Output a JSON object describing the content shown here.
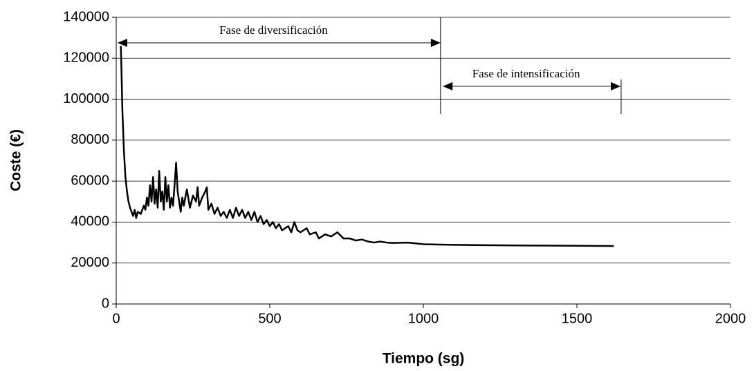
{
  "chart_data": {
    "type": "line",
    "xlabel": "Tiempo (sg)",
    "ylabel": "Coste (€)",
    "xlim": [
      0,
      2000
    ],
    "xticks": [
      0,
      500,
      1000,
      1500,
      2000
    ],
    "ylim": [
      0,
      140000
    ],
    "yticks": [
      0,
      20000,
      40000,
      60000,
      80000,
      100000,
      120000,
      140000
    ],
    "grid": true,
    "series": [
      {
        "color": "#000000",
        "x": [
          15,
          17,
          20,
          25,
          30,
          35,
          40,
          45,
          50,
          55,
          60,
          65,
          70,
          80,
          90,
          95,
          100,
          105,
          110,
          115,
          120,
          125,
          130,
          135,
          140,
          145,
          150,
          155,
          160,
          165,
          170,
          175,
          180,
          185,
          190,
          195,
          200,
          205,
          210,
          215,
          220,
          230,
          240,
          250,
          260,
          265,
          270,
          280,
          290,
          295,
          300,
          310,
          320,
          330,
          340,
          350,
          360,
          370,
          380,
          390,
          400,
          410,
          420,
          430,
          440,
          450,
          460,
          470,
          480,
          490,
          500,
          510,
          520,
          530,
          540,
          560,
          570,
          580,
          590,
          600,
          620,
          630,
          650,
          660,
          680,
          700,
          720,
          740,
          760,
          780,
          800,
          820,
          840,
          860,
          880,
          900,
          950,
          1000,
          1050,
          1100,
          1200,
          1300,
          1400,
          1500,
          1620
        ],
        "values": [
          126000,
          115000,
          95000,
          75000,
          62000,
          55000,
          50000,
          47000,
          45000,
          43000,
          46000,
          42000,
          45000,
          44000,
          48000,
          46000,
          52000,
          48000,
          58000,
          50000,
          62000,
          49000,
          56000,
          47000,
          65000,
          50000,
          55000,
          46000,
          62000,
          50000,
          58000,
          47000,
          52000,
          48000,
          58000,
          69000,
          55000,
          50000,
          45000,
          52000,
          48000,
          56000,
          47000,
          53000,
          50000,
          57000,
          48000,
          52000,
          55000,
          57000,
          46000,
          49000,
          44000,
          47000,
          43000,
          45000,
          42000,
          46000,
          42000,
          47000,
          43000,
          46000,
          42000,
          45000,
          41000,
          45000,
          40000,
          43000,
          39000,
          41000,
          38000,
          40000,
          37000,
          39000,
          36000,
          38000,
          35000,
          40000,
          36000,
          35000,
          37000,
          34000,
          35000,
          32000,
          34000,
          33000,
          35000,
          32000,
          32000,
          31000,
          31500,
          30500,
          30000,
          30500,
          30000,
          29800,
          30000,
          29200,
          29000,
          28900,
          28700,
          28600,
          28500,
          28400,
          28300
        ]
      }
    ],
    "annotations": [
      {
        "text": "Fase de diversificación",
        "x": [
          0,
          1056
        ],
        "y": 127500
      },
      {
        "text": "Fase de intensificación",
        "x": [
          1059,
          1642
        ],
        "y": 106300
      }
    ],
    "vlines": [
      {
        "x": 1056,
        "y": [
          92800,
          140000
        ]
      },
      {
        "x": 1644,
        "y": [
          92800,
          109600
        ]
      }
    ]
  }
}
